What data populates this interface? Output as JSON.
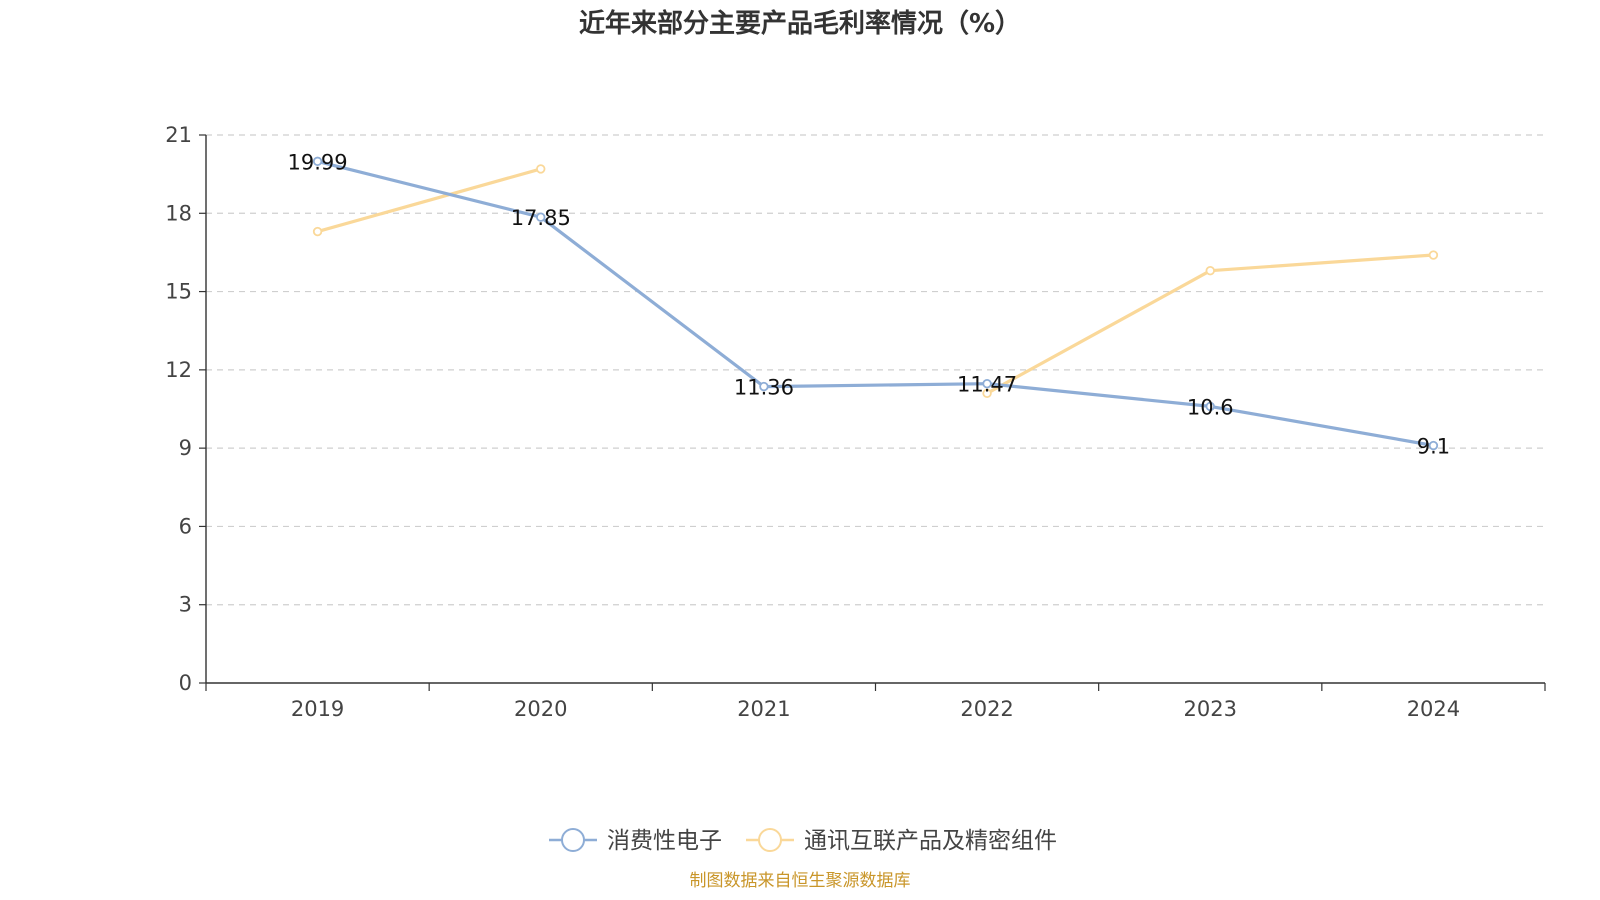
{
  "chart_data": {
    "type": "line",
    "title": "近年来部分主要产品毛利率情况（%）",
    "categories": [
      "2019",
      "2020",
      "2021",
      "2022",
      "2023",
      "2024"
    ],
    "ylim": [
      0,
      21
    ],
    "yticks": [
      0,
      3,
      6,
      9,
      12,
      15,
      18,
      21
    ],
    "yticks_text": [
      "0",
      "3",
      "6",
      "9",
      "12",
      "15",
      "18",
      "21"
    ],
    "grid": true,
    "legend_position": "bottom",
    "series": [
      {
        "name": "消费性电子",
        "color": "#8eadd6",
        "values": [
          19.99,
          17.85,
          11.36,
          11.47,
          10.6,
          9.1
        ],
        "value_labels": [
          "19.99",
          "17.85",
          "11.36",
          "11.47",
          "10.6",
          "9.1"
        ]
      },
      {
        "name": "通讯互联产品及精密组件",
        "color": "#fad899",
        "values": [
          17.3,
          19.7,
          null,
          11.1,
          15.8,
          16.4
        ]
      }
    ],
    "source": "制图数据来自恒生聚源数据库"
  }
}
